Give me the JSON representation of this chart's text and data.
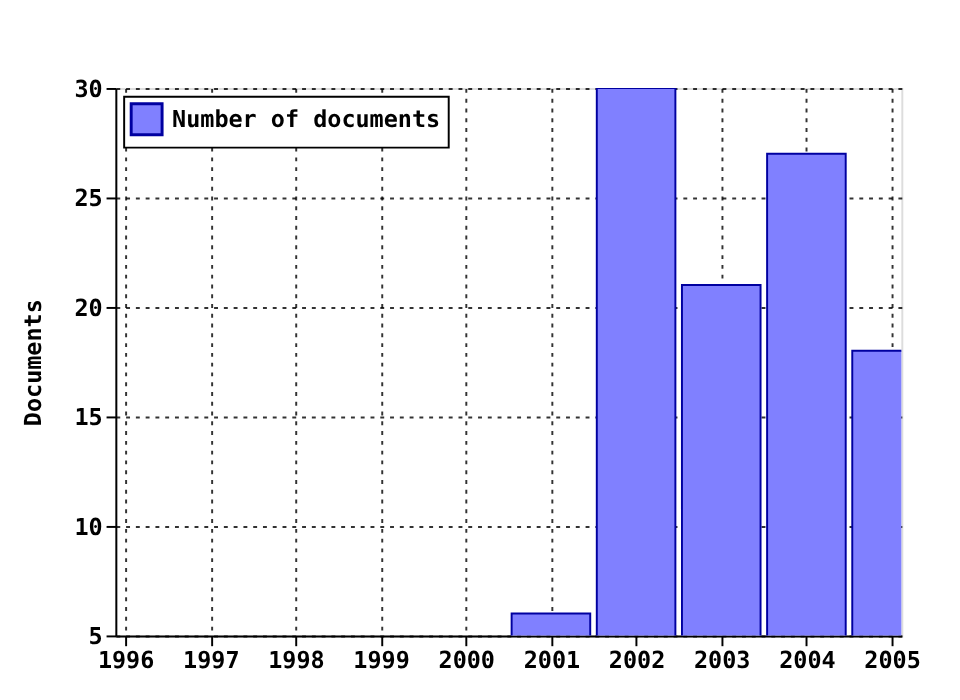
{
  "chart_data": {
    "type": "bar",
    "ylabel": "Documents",
    "x": [
      2001,
      2002,
      2003,
      2004,
      2005
    ],
    "series": [
      {
        "name": "Number of documents",
        "color": "#8080ff",
        "values": [
          6,
          30,
          21,
          27,
          18
        ]
      }
    ],
    "xlim": [
      1996,
      2005
    ],
    "xticks": [
      1996,
      1997,
      1998,
      1999,
      2000,
      2001,
      2002,
      2003,
      2004,
      2005
    ],
    "ylim": [
      5,
      30
    ],
    "yticks": [
      5,
      10,
      15,
      20,
      25,
      30
    ],
    "grid": true,
    "legend": "top left"
  }
}
